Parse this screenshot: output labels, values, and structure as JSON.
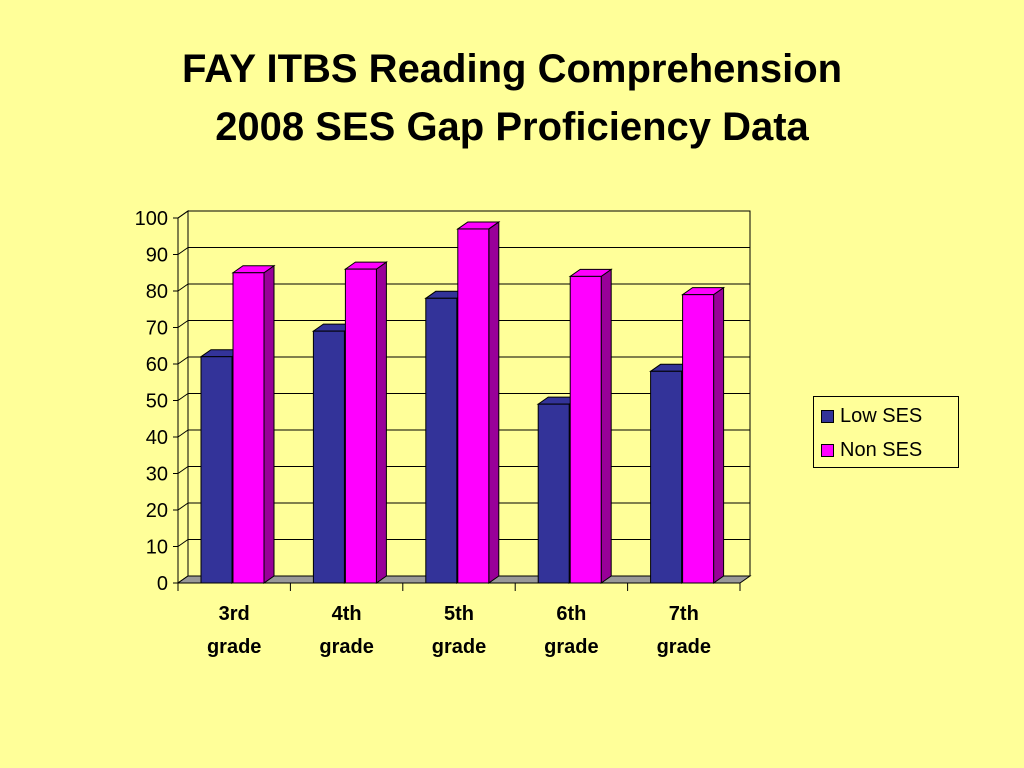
{
  "title": {
    "line1": "FAY ITBS Reading Comprehension",
    "line2": "2008 SES Gap Proficiency Data"
  },
  "chart_data": {
    "type": "bar",
    "style": "3d-clustered-column",
    "categories": [
      [
        "3rd",
        "grade"
      ],
      [
        "4th",
        "grade"
      ],
      [
        "5th",
        "grade"
      ],
      [
        "6th",
        "grade"
      ],
      [
        "7th",
        "grade"
      ]
    ],
    "series": [
      {
        "name": "Low SES",
        "color": "#333399",
        "values": [
          62,
          69,
          78,
          49,
          58
        ]
      },
      {
        "name": "Non SES",
        "color": "#ff00ff",
        "values": [
          85,
          86,
          97,
          84,
          79
        ]
      }
    ],
    "ylim": [
      0,
      100
    ],
    "yticks": [
      0,
      10,
      20,
      30,
      40,
      50,
      60,
      70,
      80,
      90,
      100
    ],
    "grid": true,
    "legend_position": "right",
    "xlabel": "",
    "ylabel": ""
  },
  "colors": {
    "background": "#ffff99",
    "floor": "#999999",
    "low_ses_side": "#1c1c66",
    "non_ses_side": "#990099"
  }
}
